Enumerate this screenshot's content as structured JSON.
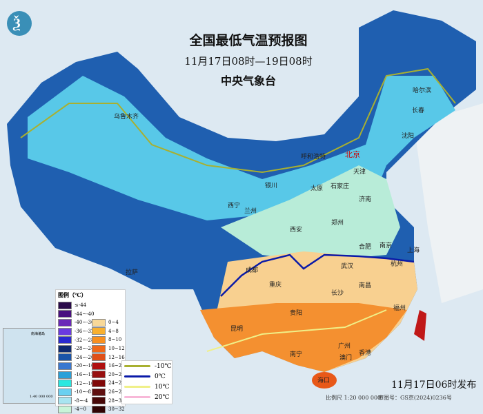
{
  "header": {
    "title": "全国最低气温预报图",
    "period": "11月17日08时—19日08时",
    "organization": "中央气象台"
  },
  "legend": {
    "title": "图例（℃）",
    "cold": [
      {
        "label": "≤-44",
        "color": "#2a0a4a"
      },
      {
        "label": "-44~-40",
        "color": "#4a1080"
      },
      {
        "label": "-40~-36",
        "color": "#6a28b8"
      },
      {
        "label": "-36~-32",
        "color": "#6b3ae0"
      },
      {
        "label": "-32~-28",
        "color": "#2a2ad0"
      },
      {
        "label": "-28~-24",
        "color": "#0e2a70"
      },
      {
        "label": "-24~-20",
        "color": "#1a54a8"
      },
      {
        "label": "-20~-16",
        "color": "#3a78d0"
      },
      {
        "label": "-16~-12",
        "color": "#2aa0d8"
      },
      {
        "label": "-12~-10",
        "color": "#2ae8e0"
      },
      {
        "label": "-10~-8",
        "color": "#6ad0f0"
      },
      {
        "label": "-8~-4",
        "color": "#a8e4f0"
      },
      {
        "label": "-4~0",
        "color": "#c8f4d8"
      }
    ],
    "warm": [
      {
        "label": "0~4",
        "color": "#f8d898"
      },
      {
        "label": "4~8",
        "color": "#f8b030"
      },
      {
        "label": "8~10",
        "color": "#f89020"
      },
      {
        "label": "10~12",
        "color": "#f06818"
      },
      {
        "label": "12~16",
        "color": "#e05018"
      },
      {
        "label": "16~20",
        "color": "#b01010"
      },
      {
        "label": "20~24",
        "color": "#981010"
      },
      {
        "label": "24~26",
        "color": "#800808"
      },
      {
        "label": "26~28",
        "color": "#601010"
      },
      {
        "label": "28~30",
        "color": "#480808"
      },
      {
        "label": "30~32",
        "color": "#300404"
      }
    ],
    "isolines": [
      {
        "label": "-10℃",
        "color": "#a8b030"
      },
      {
        "label": "0℃",
        "color": "#0a1aa8"
      },
      {
        "label": "10℃",
        "color": "#f0f088"
      },
      {
        "label": "20℃",
        "color": "#f8b8d8"
      }
    ]
  },
  "cities": [
    {
      "name": "乌鲁木齐"
    },
    {
      "name": "哈尔滨"
    },
    {
      "name": "长春"
    },
    {
      "name": "沈阳"
    },
    {
      "name": "北京"
    },
    {
      "name": "天津"
    },
    {
      "name": "呼和浩特"
    },
    {
      "name": "石家庄"
    },
    {
      "name": "太原"
    },
    {
      "name": "银川"
    },
    {
      "name": "济南"
    },
    {
      "name": "西宁"
    },
    {
      "name": "兰州"
    },
    {
      "name": "郑州"
    },
    {
      "name": "西安"
    },
    {
      "name": "合肥"
    },
    {
      "name": "南京"
    },
    {
      "name": "上海"
    },
    {
      "name": "杭州"
    },
    {
      "name": "拉萨"
    },
    {
      "name": "成都"
    },
    {
      "name": "武汉"
    },
    {
      "name": "重庆"
    },
    {
      "name": "南昌"
    },
    {
      "name": "长沙"
    },
    {
      "name": "福州"
    },
    {
      "name": "贵阳"
    },
    {
      "name": "昆明"
    },
    {
      "name": "南宁"
    },
    {
      "name": "广州"
    },
    {
      "name": "香港"
    },
    {
      "name": "澳门"
    },
    {
      "name": "海口"
    }
  ],
  "inset": {
    "title": "南海诸岛",
    "scale": "1:40 000 000"
  },
  "footer": {
    "issued": "11月17日06时发布",
    "scale": "比例尺 1:20 000 000",
    "review": "审图号：GS京(2024)0236号"
  }
}
